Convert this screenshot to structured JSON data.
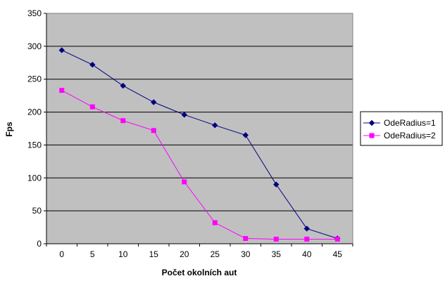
{
  "chart_data": {
    "type": "line",
    "title": "",
    "xlabel": "Počet okolních aut",
    "ylabel": "Fps",
    "categories": [
      "0",
      "5",
      "10",
      "15",
      "20",
      "25",
      "30",
      "35",
      "40",
      "45"
    ],
    "y_ticks": [
      "0",
      "50",
      "100",
      "150",
      "200",
      "250",
      "300",
      "350"
    ],
    "ylim": [
      0,
      350
    ],
    "grid": true,
    "legend_position": "right",
    "plot_background": "#c0c0c0",
    "series": [
      {
        "name": "OdeRadius=1",
        "color": "#000080",
        "marker": "diamond",
        "values": [
          294,
          272,
          240,
          215,
          196,
          180,
          165,
          90,
          23,
          8
        ]
      },
      {
        "name": "OdeRadius=2",
        "color": "#ff00ff",
        "marker": "square",
        "values": [
          233,
          208,
          187,
          172,
          94,
          32,
          8,
          7,
          7,
          7
        ]
      }
    ]
  }
}
